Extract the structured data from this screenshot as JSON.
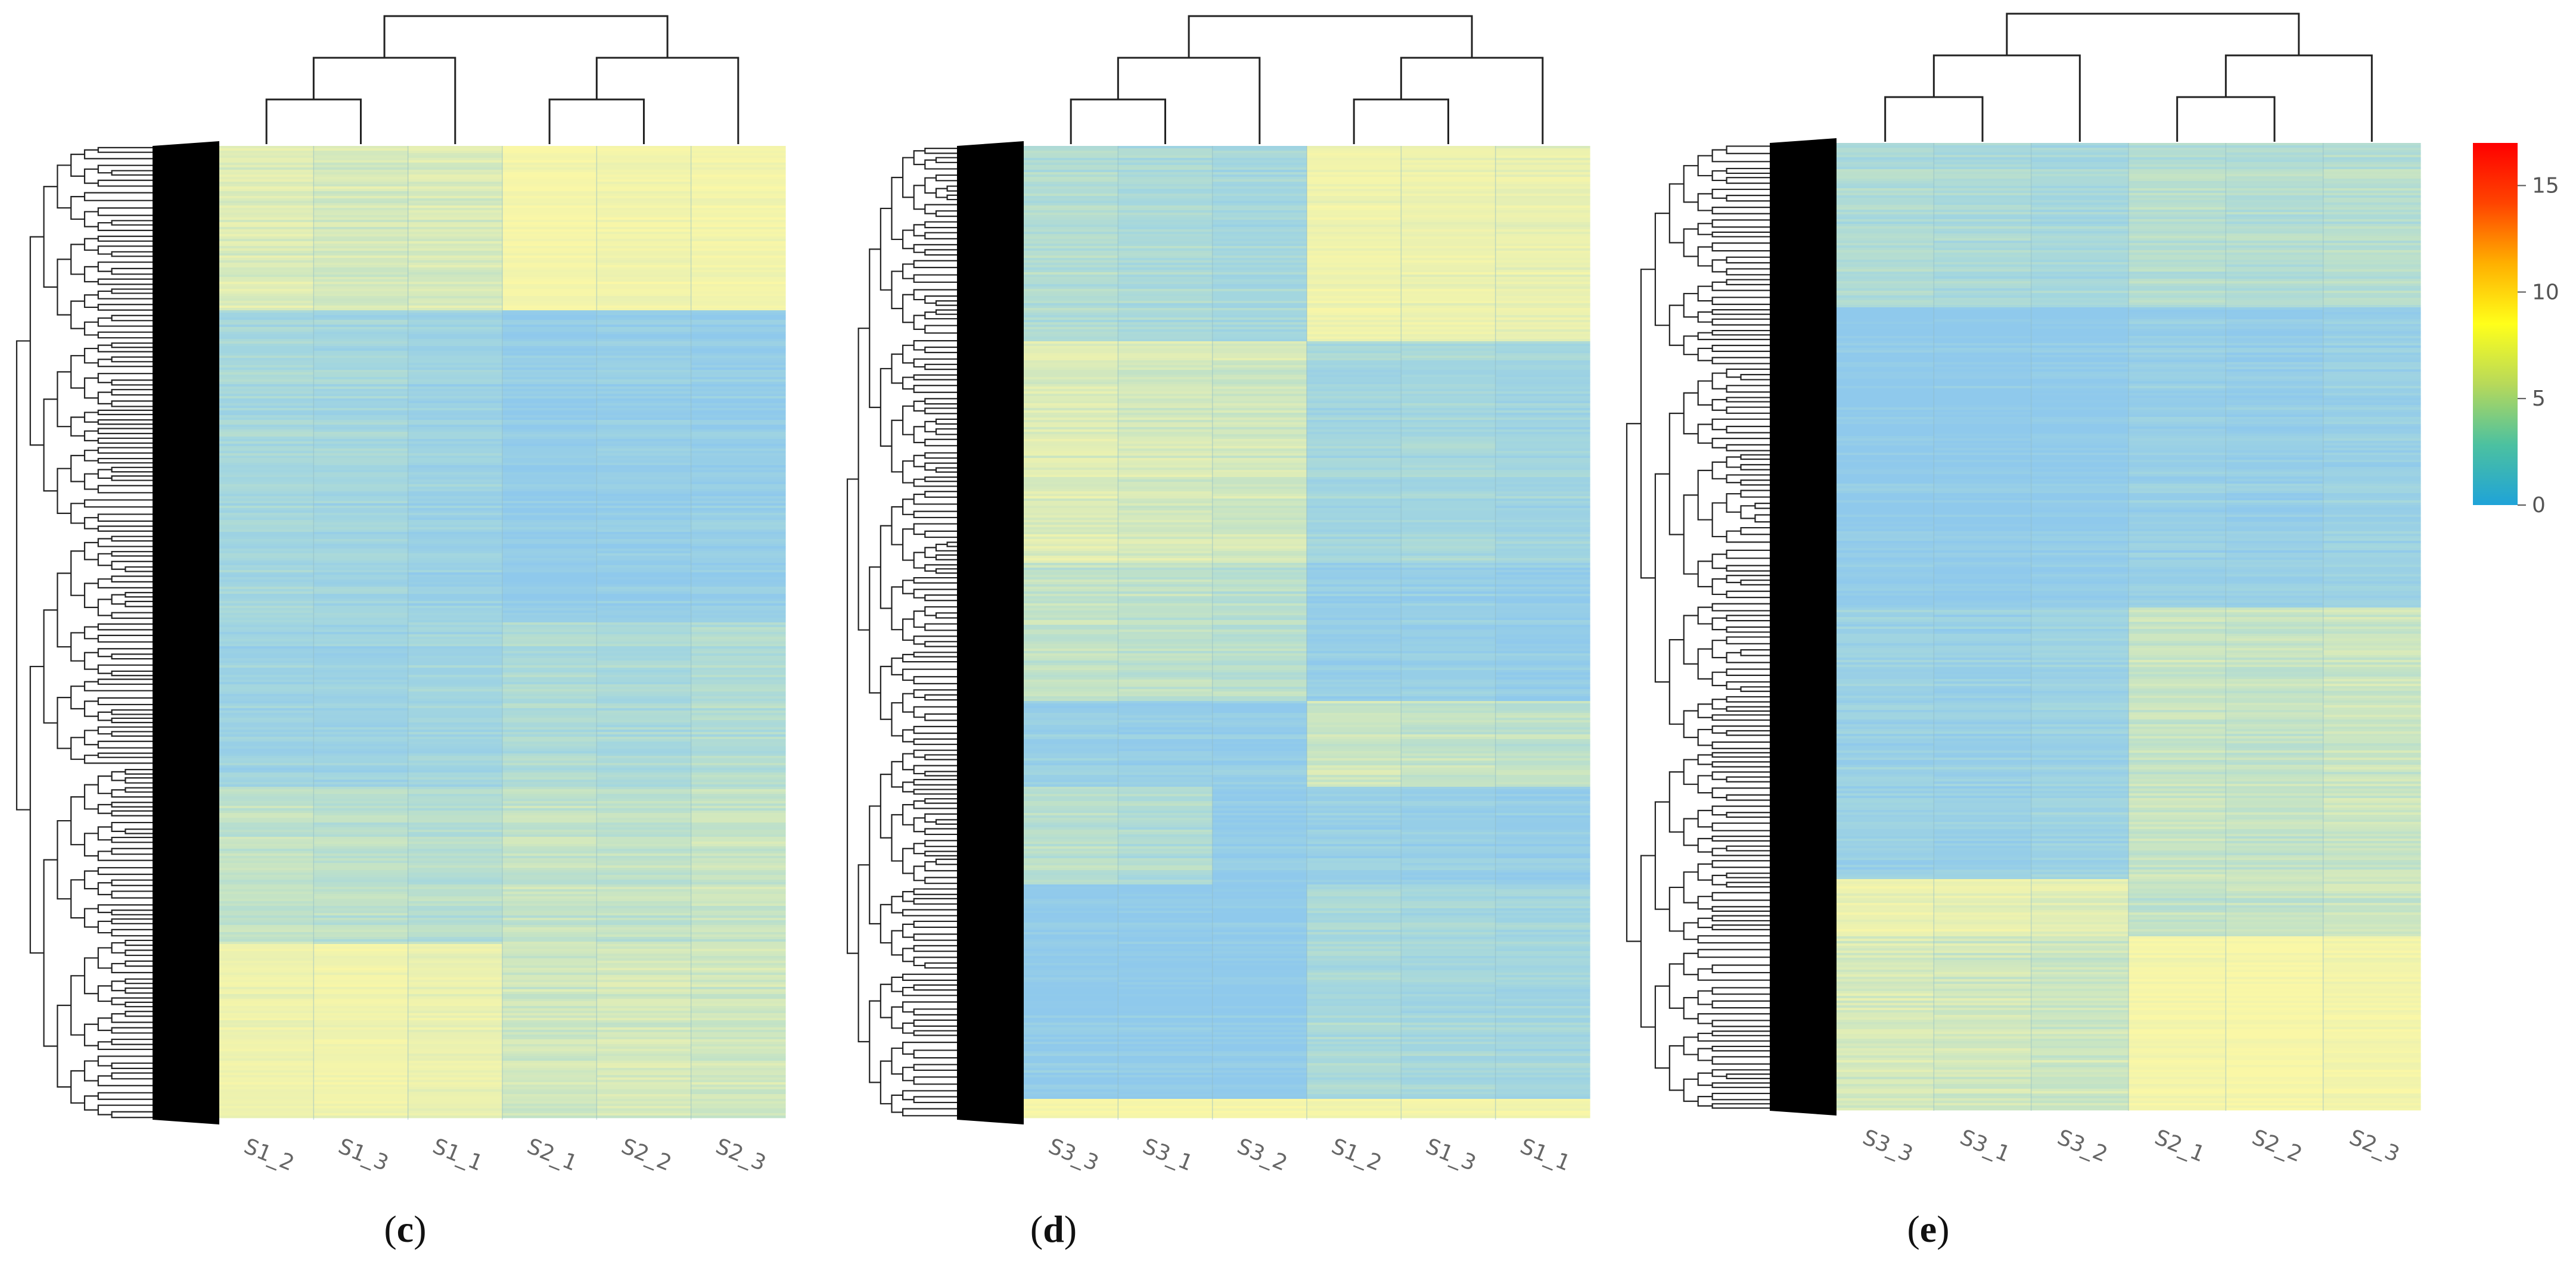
{
  "chart_data": [
    {
      "type": "heatmap",
      "panel_label": "c",
      "columns": [
        "S1_2",
        "S1_3",
        "S1_1",
        "S2_1",
        "S2_2",
        "S2_3"
      ],
      "blocks": [
        {
          "from": 0.0,
          "to": 0.17,
          "values": [
            6.5,
            6.0,
            6.2,
            8.5,
            8.0,
            8.2
          ]
        },
        {
          "from": 0.17,
          "to": 0.35,
          "values": [
            3.2,
            3.0,
            2.5,
            1.5,
            1.8,
            1.6
          ]
        },
        {
          "from": 0.35,
          "to": 0.49,
          "values": [
            3.0,
            2.8,
            2.2,
            1.4,
            1.5,
            1.7
          ]
        },
        {
          "from": 0.49,
          "to": 0.66,
          "values": [
            2.5,
            2.4,
            2.8,
            3.8,
            3.5,
            4.0
          ]
        },
        {
          "from": 0.66,
          "to": 0.82,
          "values": [
            4.8,
            4.5,
            4.2,
            5.0,
            4.8,
            5.2
          ]
        },
        {
          "from": 0.82,
          "to": 1.0,
          "values": [
            7.5,
            7.8,
            7.2,
            5.5,
            5.8,
            5.6
          ]
        }
      ],
      "col_tree": [
        [
          0,
          1
        ],
        [
          6,
          2
        ],
        [
          3,
          4
        ],
        [
          8,
          5
        ],
        [
          7,
          9
        ]
      ],
      "colorbar": false
    },
    {
      "type": "heatmap",
      "panel_label": "d",
      "columns": [
        "S3_3",
        "S3_1",
        "S3_2",
        "S1_2",
        "S1_3",
        "S1_1"
      ],
      "blocks": [
        {
          "from": 0.0,
          "to": 0.2,
          "values": [
            4.0,
            3.5,
            3.0,
            7.8,
            7.5,
            7.2
          ]
        },
        {
          "from": 0.2,
          "to": 0.43,
          "values": [
            6.5,
            6.0,
            5.8,
            3.0,
            3.2,
            2.8
          ]
        },
        {
          "from": 0.43,
          "to": 0.57,
          "values": [
            5.0,
            4.8,
            4.5,
            1.8,
            2.0,
            1.6
          ]
        },
        {
          "from": 0.57,
          "to": 0.66,
          "values": [
            2.0,
            1.8,
            1.6,
            5.5,
            5.0,
            4.8
          ]
        },
        {
          "from": 0.66,
          "to": 0.76,
          "values": [
            4.5,
            4.0,
            1.5,
            2.2,
            2.0,
            1.8
          ]
        },
        {
          "from": 0.76,
          "to": 0.98,
          "values": [
            1.4,
            1.3,
            1.2,
            3.5,
            3.2,
            3.0
          ]
        },
        {
          "from": 0.98,
          "to": 1.0,
          "values": [
            8.5,
            8.5,
            8.5,
            8.0,
            8.2,
            8.0
          ]
        }
      ],
      "col_tree": [
        [
          0,
          1
        ],
        [
          6,
          2
        ],
        [
          3,
          4
        ],
        [
          8,
          5
        ],
        [
          7,
          9
        ]
      ],
      "colorbar": false
    },
    {
      "type": "heatmap",
      "panel_label": "e",
      "columns": [
        "S3_3",
        "S3_1",
        "S3_2",
        "S2_1",
        "S2_2",
        "S2_3"
      ],
      "blocks": [
        {
          "from": 0.0,
          "to": 0.17,
          "values": [
            3.8,
            3.5,
            3.2,
            4.2,
            4.0,
            4.3
          ]
        },
        {
          "from": 0.17,
          "to": 0.48,
          "values": [
            1.2,
            1.1,
            1.3,
            2.0,
            1.8,
            2.2
          ]
        },
        {
          "from": 0.48,
          "to": 0.76,
          "values": [
            2.2,
            2.0,
            2.4,
            5.2,
            5.0,
            5.4
          ]
        },
        {
          "from": 0.76,
          "to": 0.82,
          "values": [
            7.5,
            7.2,
            6.8,
            5.0,
            5.2,
            5.5
          ]
        },
        {
          "from": 0.82,
          "to": 1.0,
          "values": [
            6.0,
            5.8,
            5.5,
            8.5,
            8.8,
            8.2
          ]
        }
      ],
      "col_tree": [
        [
          0,
          1
        ],
        [
          6,
          2
        ],
        [
          3,
          4
        ],
        [
          8,
          5
        ],
        [
          7,
          9
        ]
      ],
      "colorbar": true
    }
  ],
  "colorbar": {
    "min": 0,
    "max": 17,
    "ticks": [
      0,
      5,
      10,
      15
    ],
    "colors": [
      "#1fa3d8",
      "#4cc1a0",
      "#b7d95a",
      "#ffff1a",
      "#ffb000",
      "#ff4400",
      "#ff0000"
    ]
  },
  "cell_colors": [
    "#8fc9ec",
    "#a3d6df",
    "#c2e2c6",
    "#e8f0b2",
    "#faf7a6"
  ]
}
